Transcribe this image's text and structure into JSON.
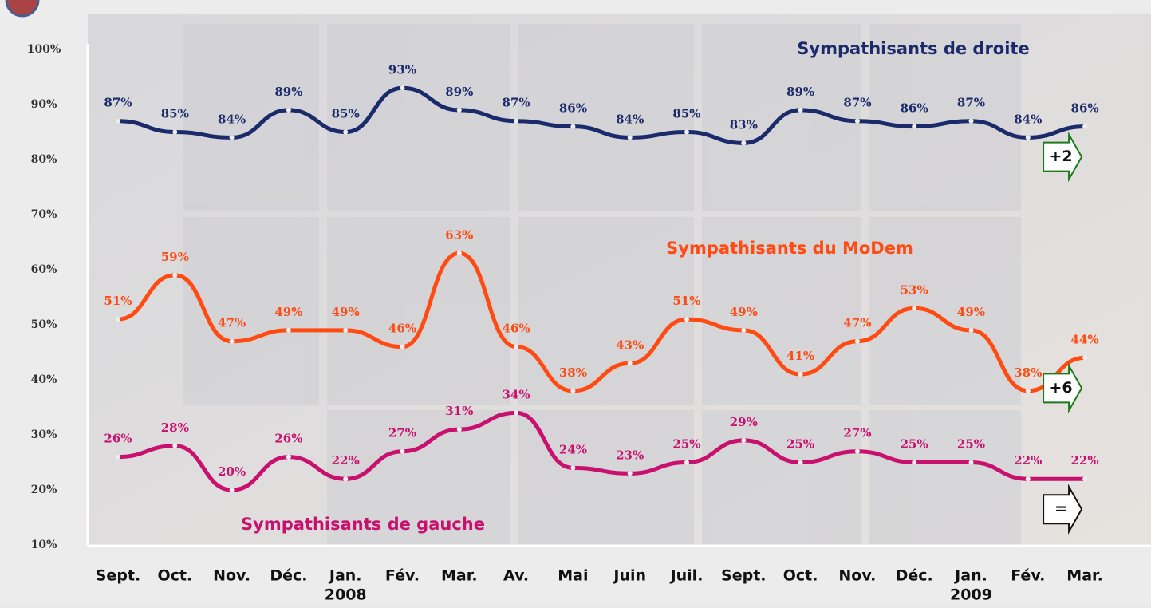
{
  "chart_data": {
    "type": "line",
    "categories": [
      "Sept.",
      "Oct.",
      "Nov.",
      "Déc.",
      "Jan.",
      "Fév.",
      "Mar.",
      "Av.",
      "Mai",
      "Juin",
      "Juil.",
      "Sept.",
      "Oct.",
      "Nov.",
      "Déc.",
      "Jan.",
      "Fév.",
      "Mar."
    ],
    "category_sublabels": [
      null,
      null,
      null,
      null,
      "2008",
      null,
      null,
      null,
      null,
      null,
      null,
      null,
      null,
      null,
      null,
      "2009",
      null,
      null
    ],
    "ylim": [
      10,
      100
    ],
    "yticks": [
      {
        "value": 100,
        "label": "100%"
      },
      {
        "value": 90,
        "label": "90%"
      },
      {
        "value": 80,
        "label": "80%"
      },
      {
        "value": 70,
        "label": "70%"
      },
      {
        "value": 60,
        "label": "60%"
      },
      {
        "value": 50,
        "label": "50%"
      },
      {
        "value": 40,
        "label": "40%"
      },
      {
        "value": 30,
        "label": "30%"
      },
      {
        "value": 20,
        "label": "20%"
      },
      {
        "value": 10,
        "label": "10%"
      }
    ],
    "series": [
      {
        "name": "Sympathisants de droite",
        "color": "#1b2a6b",
        "change": "+2",
        "values": [
          87,
          85,
          84,
          89,
          85,
          93,
          89,
          87,
          86,
          84,
          85,
          83,
          89,
          87,
          86,
          87,
          84,
          86
        ],
        "value_labels": [
          "87%",
          "85%",
          "84%",
          "89%",
          "85%",
          "93%",
          "89%",
          "87%",
          "86%",
          "84%",
          "85%",
          "83%",
          "89%",
          "87%",
          "86%",
          "87%",
          "84%",
          "86%"
        ]
      },
      {
        "name": "Sympathisants du MoDem",
        "color": "#ff4a12",
        "change": "+6",
        "values": [
          51,
          59,
          47,
          49,
          49,
          46,
          63,
          46,
          38,
          43,
          51,
          49,
          41,
          47,
          53,
          49,
          38,
          44
        ],
        "value_labels": [
          "51%",
          "59%",
          "47%",
          "49%",
          "49%",
          "46%",
          "63%",
          "46%",
          "38%",
          "43%",
          "51%",
          "49%",
          "41%",
          "47%",
          "53%",
          "49%",
          "38%",
          "44%"
        ]
      },
      {
        "name": "Sympathisants de gauche",
        "color": "#c8116f",
        "change": "=",
        "values": [
          26,
          28,
          20,
          26,
          22,
          27,
          31,
          34,
          24,
          23,
          25,
          29,
          25,
          27,
          25,
          25,
          22,
          22
        ],
        "value_labels": [
          "26%",
          "28%",
          "20%",
          "26%",
          "22%",
          "27%",
          "31%",
          "34%",
          "24%",
          "23%",
          "25%",
          "29%",
          "25%",
          "27%",
          "25%",
          "25%",
          "22%",
          "22%"
        ]
      }
    ]
  }
}
